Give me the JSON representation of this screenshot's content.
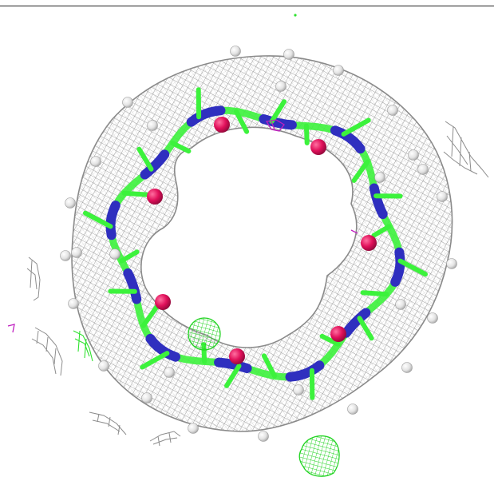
{
  "image": {
    "subject": "molecular-structure-electron-density-map",
    "colors": {
      "background": "#ffffff",
      "top_rule": "#222222",
      "density_mesh": "#9a9a9a",
      "carbon": "#3cf23c",
      "nitrogen": "#2f2fbf",
      "oxygen": "#e0105a",
      "hydrogen": "#e8e8e8",
      "magenta_fragment": "#c020c0",
      "green_blob": "#2fe22f"
    },
    "icons": {
      "ring": "macrocycle-ring-icon",
      "oxygen_atoms": "oxygen-atom-icon",
      "hydrogen_atoms": "hydrogen-atom-icon"
    }
  }
}
